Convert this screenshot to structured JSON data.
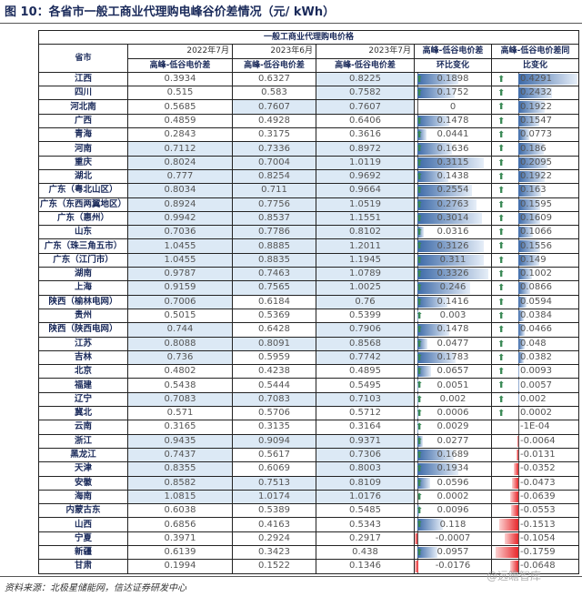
{
  "title": "图 10：各省市一般工商业代理购电峰谷价差情况（元/ kWh）",
  "table": {
    "group_header": "一般工商业代理购电价格",
    "col_province": "省市",
    "col_2022_07": "2022年7月",
    "col_2023_06": "2023年6月",
    "col_2023_07": "2023年7月",
    "sub_label": "高峰-低谷电价差",
    "col_mom_1": "高峰-低谷电价差",
    "col_mom_2": "环比变化",
    "col_yoy_1": "高峰-低谷电价差同",
    "col_yoy_2": "比变化",
    "rows": [
      [
        "江西",
        "0.3934",
        "0.6327",
        "0.8225",
        "0.1898",
        "0.4291"
      ],
      [
        "四川",
        "0.515",
        "0.583",
        "0.7582",
        "0.1752",
        "0.2432"
      ],
      [
        "河北南",
        "0.5685",
        "0.7607",
        "0.7607",
        "0",
        "0.1922"
      ],
      [
        "广西",
        "0.4859",
        "0.4928",
        "0.6406",
        "0.1478",
        "0.1547"
      ],
      [
        "青海",
        "0.2843",
        "0.3175",
        "0.3616",
        "0.0441",
        "0.0773"
      ],
      [
        "河南",
        "0.7112",
        "0.7336",
        "0.8972",
        "0.1636",
        "0.186"
      ],
      [
        "重庆",
        "0.8024",
        "0.7004",
        "1.0119",
        "0.3115",
        "0.2095"
      ],
      [
        "湖北",
        "0.777",
        "0.8254",
        "0.9692",
        "0.1438",
        "0.1922"
      ],
      [
        "广东（粤北山区）",
        "0.8034",
        "0.711",
        "0.9664",
        "0.2554",
        "0.163"
      ],
      [
        "广东（东西两翼地区）",
        "0.8924",
        "0.7756",
        "1.0519",
        "0.2763",
        "0.1595"
      ],
      [
        "广东（惠州）",
        "0.9942",
        "0.8537",
        "1.1551",
        "0.3014",
        "0.1609"
      ],
      [
        "山东",
        "0.7036",
        "0.7786",
        "0.8102",
        "0.0316",
        "0.1066"
      ],
      [
        "广东（珠三角五市）",
        "1.0455",
        "0.8885",
        "1.2011",
        "0.3126",
        "0.1556"
      ],
      [
        "广东（江门市）",
        "1.0455",
        "0.8835",
        "1.1945",
        "0.311",
        "0.149"
      ],
      [
        "湖南",
        "0.9787",
        "0.7463",
        "1.0789",
        "0.3326",
        "0.1002"
      ],
      [
        "上海",
        "0.9159",
        "0.7565",
        "1.0025",
        "0.246",
        "0.0866"
      ],
      [
        "陕西（榆林电网）",
        "0.7006",
        "0.6184",
        "0.76",
        "0.1416",
        "0.0594"
      ],
      [
        "贵州",
        "0.5015",
        "0.5369",
        "0.5399",
        "0.003",
        "0.0384"
      ],
      [
        "陕西（陕西电网）",
        "0.744",
        "0.6428",
        "0.7906",
        "0.1478",
        "0.0466"
      ],
      [
        "江苏",
        "0.8088",
        "0.8091",
        "0.8568",
        "0.0477",
        "0.048"
      ],
      [
        "吉林",
        "0.736",
        "0.5959",
        "0.7742",
        "0.1783",
        "0.0382"
      ],
      [
        "北京",
        "0.4802",
        "0.4238",
        "0.4895",
        "0.0657",
        "0.0093"
      ],
      [
        "福建",
        "0.5438",
        "0.5444",
        "0.5495",
        "0.0051",
        "0.0057"
      ],
      [
        "辽宁",
        "0.7083",
        "0.7083",
        "0.7103",
        "0.002",
        "0.002"
      ],
      [
        "冀北",
        "0.571",
        "0.5706",
        "0.5712",
        "0.0006",
        "0.0002"
      ],
      [
        "云南",
        "0.3165",
        "0.3135",
        "0.3164",
        "0.0029",
        "-1E-04"
      ],
      [
        "浙江",
        "0.9435",
        "0.9094",
        "0.9371",
        "0.0277",
        "-0.0064"
      ],
      [
        "黑龙江",
        "0.7437",
        "0.5617",
        "0.7306",
        "0.1689",
        "-0.0131"
      ],
      [
        "天津",
        "0.8355",
        "0.6069",
        "0.8003",
        "0.1934",
        "-0.0352"
      ],
      [
        "安徽",
        "0.8582",
        "0.7513",
        "0.8109",
        "0.0596",
        "-0.0473"
      ],
      [
        "海南",
        "1.0815",
        "1.0174",
        "1.0176",
        "0.0002",
        "-0.0639"
      ],
      [
        "内蒙古东",
        "0.6038",
        "0.5389",
        "0.5485",
        "0.0096",
        "-0.0553"
      ],
      [
        "山西",
        "0.6856",
        "0.4163",
        "0.5343",
        "0.118",
        "-0.1513"
      ],
      [
        "宁夏",
        "0.3971",
        "0.2924",
        "0.2917",
        "-0.0007",
        "-0.1054"
      ],
      [
        "新疆",
        "0.6139",
        "0.3423",
        "0.438",
        "0.0957",
        "-0.1759"
      ],
      [
        "甘肃",
        "0.1994",
        "0.1522",
        "0.1346",
        "-0.0176",
        "-0.0648"
      ]
    ]
  },
  "colors": {
    "highlight": "#dce9f5",
    "bar_positive": "#3d6aa8",
    "bar_negative": "#e8282c",
    "arrow": "#3a8a55"
  },
  "icons": {
    "up": "arrow-up-icon"
  },
  "footer": "资料来源：北极星储能网，信达证券研发中心",
  "watermark": "@远瞻智库"
}
